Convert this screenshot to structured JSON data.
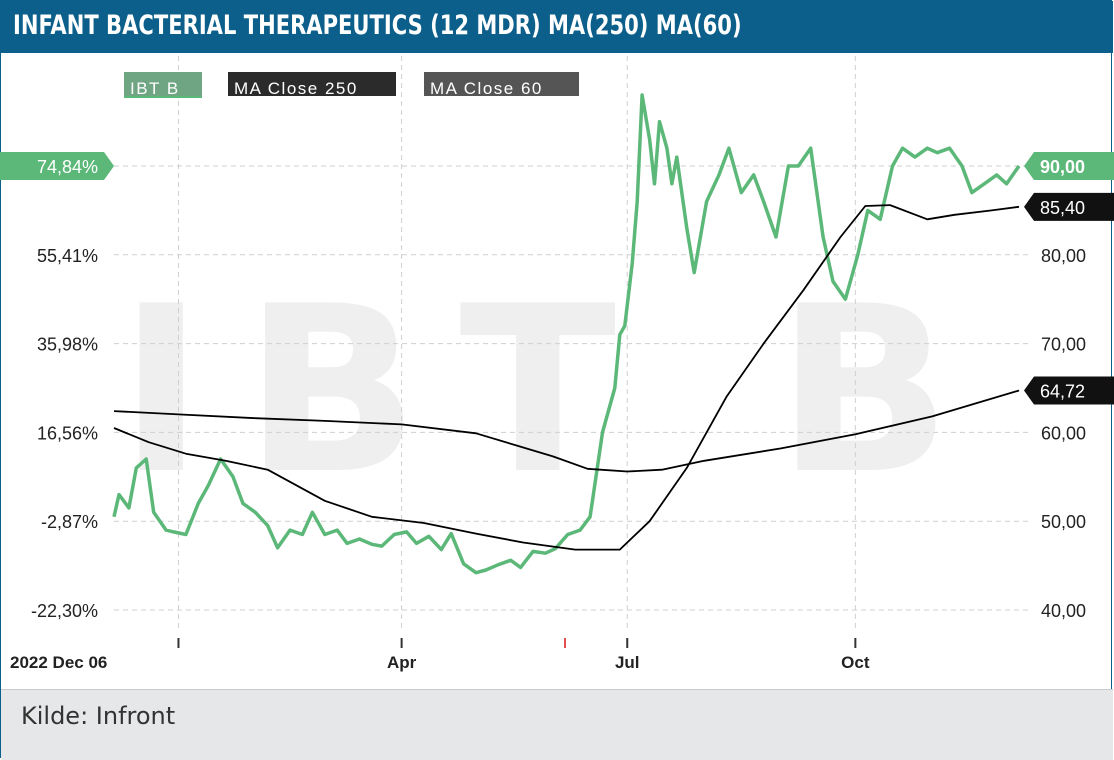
{
  "title": "INFANT BACTERIAL THERAPEUTICS (12 MDR) MA(250) MA(60)",
  "source": "Kilde: Infront",
  "watermark": "IBT B",
  "colors": {
    "brand": "#0b5f8a",
    "price": "#5cb878",
    "ma": "#000000",
    "grid": "#cfcfcf",
    "footer": "#e6e7e8"
  },
  "chart_data": {
    "type": "line",
    "x_range": [
      "2022-12-06",
      "2023-12-06"
    ],
    "x_ticks": [
      {
        "label": "2022 Dec 06",
        "date": "2022-12-06"
      },
      {
        "label": "Apr",
        "date": "2023-04-01"
      },
      {
        "label": "Jul",
        "date": "2023-07-01"
      },
      {
        "label": "Oct",
        "date": "2023-10-01"
      }
    ],
    "y_right": {
      "ticks": [
        "40,00",
        "50,00",
        "60,00",
        "70,00",
        "80,00",
        "90,00"
      ],
      "ylim": [
        39,
        103
      ]
    },
    "y_left": {
      "ticks": [
        "-22,30%",
        "-2,87%",
        "16,56%",
        "35,98%",
        "55,41%",
        "74,84%"
      ],
      "unit": "percent change"
    },
    "grid": true,
    "legend": [
      "IBT B",
      "MA Close 250",
      "MA Close 60"
    ],
    "last_value_labels": {
      "price": "90,00",
      "pct": "74,84%",
      "ma60": "85,40",
      "ma250": "64,72"
    },
    "series": [
      {
        "name": "IBT B",
        "color": "#5cb878",
        "x": [
          "2022-12-06",
          "2022-12-08",
          "2022-12-12",
          "2022-12-15",
          "2022-12-19",
          "2022-12-22",
          "2022-12-27",
          "2022-12-30",
          "2023-01-04",
          "2023-01-09",
          "2023-01-13",
          "2023-01-18",
          "2023-01-23",
          "2023-01-27",
          "2023-02-01",
          "2023-02-06",
          "2023-02-10",
          "2023-02-15",
          "2023-02-20",
          "2023-02-24",
          "2023-03-01",
          "2023-03-06",
          "2023-03-10",
          "2023-03-15",
          "2023-03-20",
          "2023-03-24",
          "2023-03-29",
          "2023-04-03",
          "2023-04-07",
          "2023-04-12",
          "2023-04-17",
          "2023-04-21",
          "2023-04-26",
          "2023-05-01",
          "2023-05-05",
          "2023-05-10",
          "2023-05-15",
          "2023-05-19",
          "2023-05-24",
          "2023-05-29",
          "2023-06-02",
          "2023-06-07",
          "2023-06-12",
          "2023-06-16",
          "2023-06-21",
          "2023-06-26",
          "2023-06-28",
          "2023-06-30",
          "2023-07-03",
          "2023-07-05",
          "2023-07-07",
          "2023-07-10",
          "2023-07-12",
          "2023-07-14",
          "2023-07-17",
          "2023-07-19",
          "2023-07-21",
          "2023-07-25",
          "2023-07-28",
          "2023-08-02",
          "2023-08-07",
          "2023-08-11",
          "2023-08-16",
          "2023-08-21",
          "2023-08-25",
          "2023-08-30",
          "2023-09-04",
          "2023-09-08",
          "2023-09-13",
          "2023-09-18",
          "2023-09-22",
          "2023-09-27",
          "2023-10-02",
          "2023-10-06",
          "2023-10-11",
          "2023-10-16",
          "2023-10-20",
          "2023-10-25",
          "2023-10-30",
          "2023-11-03",
          "2023-11-08",
          "2023-11-13",
          "2023-11-17",
          "2023-11-22",
          "2023-11-27",
          "2023-12-01",
          "2023-12-06"
        ],
        "values": [
          50.5,
          53,
          51.5,
          56,
          57,
          51,
          49,
          48.8,
          48.5,
          52,
          54,
          57,
          55,
          52,
          51,
          49.5,
          47,
          49,
          48.5,
          51,
          48.5,
          49,
          47.5,
          48,
          47.4,
          47.2,
          48.5,
          48.8,
          47.5,
          48.3,
          46.8,
          48.6,
          45.2,
          44.2,
          44.5,
          45.1,
          45.6,
          44.8,
          46.6,
          46.4,
          46.9,
          48.5,
          49,
          50.5,
          60,
          65,
          71,
          72,
          79,
          86,
          98,
          93,
          88,
          95,
          92,
          88,
          91,
          83,
          78,
          86,
          89,
          92,
          87,
          89,
          86,
          82,
          90,
          90,
          92,
          82,
          77,
          75,
          80,
          85,
          84,
          90,
          92,
          91,
          92,
          91.5,
          92,
          90,
          87,
          88,
          89,
          88,
          90
        ]
      },
      {
        "name": "MA Close 250",
        "color": "#000000",
        "x": [
          "2022-12-06",
          "2023-01-03",
          "2023-02-01",
          "2023-03-01",
          "2023-04-01",
          "2023-05-01",
          "2023-06-01",
          "2023-06-15",
          "2023-07-01",
          "2023-07-15",
          "2023-08-01",
          "2023-09-01",
          "2023-10-01",
          "2023-11-01",
          "2023-12-06"
        ],
        "values": [
          62.4,
          62,
          61.6,
          61.3,
          60.9,
          59.9,
          57.3,
          55.9,
          55.6,
          55.8,
          56.8,
          58.2,
          59.8,
          61.8,
          64.72
        ]
      },
      {
        "name": "MA Close 60",
        "color": "#000000",
        "x": [
          "2022-12-06",
          "2022-12-20",
          "2023-01-04",
          "2023-01-20",
          "2023-02-06",
          "2023-03-01",
          "2023-03-20",
          "2023-04-10",
          "2023-05-01",
          "2023-05-20",
          "2023-06-10",
          "2023-06-28",
          "2023-07-10",
          "2023-07-25",
          "2023-08-10",
          "2023-08-25",
          "2023-09-10",
          "2023-09-25",
          "2023-10-05",
          "2023-10-15",
          "2023-10-30",
          "2023-11-10",
          "2023-11-25",
          "2023-12-06"
        ],
        "values": [
          60.5,
          58.9,
          57.6,
          56.8,
          55.8,
          52.3,
          50.5,
          49.8,
          48.6,
          47.6,
          46.8,
          46.8,
          50,
          56,
          64,
          70,
          76,
          82,
          85.5,
          85.6,
          84,
          84.5,
          85,
          85.4
        ]
      }
    ]
  }
}
